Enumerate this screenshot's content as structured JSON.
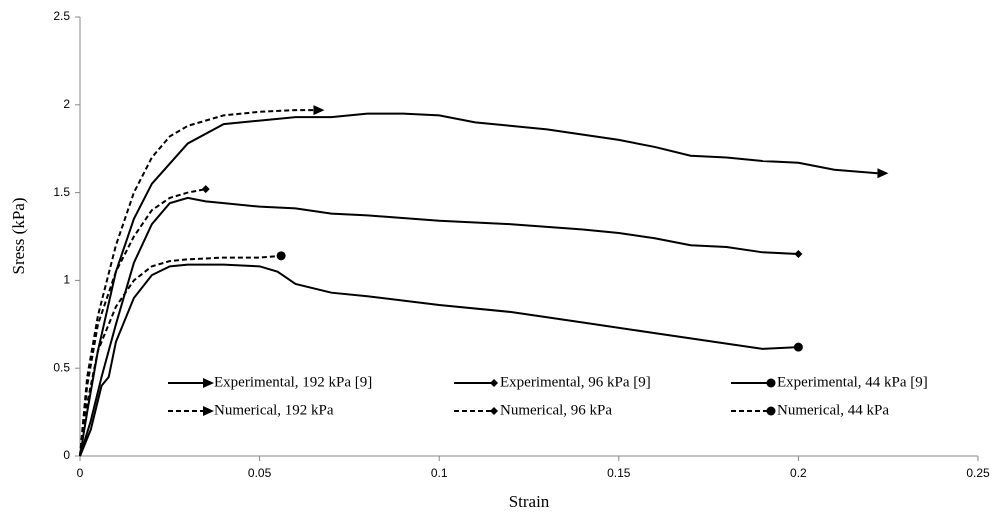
{
  "chart_data": {
    "type": "line",
    "x_label": "Strain",
    "y_label": "Sress (kPa)",
    "xlim": [
      0,
      0.25
    ],
    "xticks": [
      0,
      0.05,
      0.1,
      0.15,
      0.2,
      0.25
    ],
    "ylim": [
      0,
      2.5
    ],
    "yticks": [
      0,
      0.5,
      1,
      1.5,
      2,
      2.5
    ],
    "grid": false,
    "series": [
      {
        "name": "Experimental, 192 kPa [9]",
        "color": "#000000",
        "linestyle": "solid",
        "marker": "arrow",
        "x": [
          0,
          0.002,
          0.005,
          0.01,
          0.015,
          0.02,
          0.03,
          0.04,
          0.05,
          0.06,
          0.07,
          0.08,
          0.09,
          0.1,
          0.11,
          0.12,
          0.13,
          0.14,
          0.15,
          0.16,
          0.17,
          0.18,
          0.19,
          0.2,
          0.21,
          0.222
        ],
        "values": [
          0,
          0.25,
          0.6,
          1.05,
          1.35,
          1.55,
          1.78,
          1.89,
          1.91,
          1.93,
          1.93,
          1.95,
          1.95,
          1.94,
          1.9,
          1.88,
          1.86,
          1.83,
          1.8,
          1.76,
          1.71,
          1.7,
          1.68,
          1.67,
          1.63,
          1.61
        ]
      },
      {
        "name": "Experimental, 96 kPa [9]",
        "color": "#000000",
        "linestyle": "solid",
        "marker": "diamond",
        "x": [
          0,
          0.003,
          0.006,
          0.008,
          0.01,
          0.015,
          0.02,
          0.025,
          0.03,
          0.035,
          0.04,
          0.05,
          0.06,
          0.07,
          0.08,
          0.1,
          0.12,
          0.14,
          0.15,
          0.16,
          0.17,
          0.18,
          0.19,
          0.2
        ],
        "values": [
          0,
          0.2,
          0.45,
          0.6,
          0.75,
          1.1,
          1.32,
          1.44,
          1.47,
          1.45,
          1.44,
          1.42,
          1.41,
          1.38,
          1.37,
          1.34,
          1.32,
          1.29,
          1.27,
          1.24,
          1.2,
          1.19,
          1.16,
          1.15
        ]
      },
      {
        "name": "Experimental, 44 kPa [9]",
        "color": "#000000",
        "linestyle": "solid",
        "marker": "circle",
        "x": [
          0,
          0.003,
          0.006,
          0.008,
          0.01,
          0.015,
          0.02,
          0.025,
          0.03,
          0.04,
          0.05,
          0.055,
          0.06,
          0.07,
          0.08,
          0.1,
          0.12,
          0.14,
          0.16,
          0.18,
          0.19,
          0.2
        ],
        "values": [
          0,
          0.15,
          0.4,
          0.45,
          0.65,
          0.9,
          1.03,
          1.08,
          1.09,
          1.09,
          1.08,
          1.05,
          0.98,
          0.93,
          0.91,
          0.86,
          0.82,
          0.76,
          0.7,
          0.64,
          0.61,
          0.62
        ]
      },
      {
        "name": "Numerical, 192 kPa",
        "color": "#000000",
        "linestyle": "dashed",
        "marker": "arrow",
        "x": [
          0,
          0.002,
          0.005,
          0.01,
          0.015,
          0.02,
          0.025,
          0.03,
          0.04,
          0.05,
          0.06,
          0.065
        ],
        "values": [
          0,
          0.45,
          0.8,
          1.2,
          1.5,
          1.7,
          1.82,
          1.88,
          1.94,
          1.96,
          1.97,
          1.97
        ]
      },
      {
        "name": "Numerical, 96 kPa",
        "color": "#000000",
        "linestyle": "dashed",
        "marker": "diamond",
        "x": [
          0,
          0.002,
          0.005,
          0.01,
          0.015,
          0.02,
          0.025,
          0.03,
          0.035
        ],
        "values": [
          0,
          0.4,
          0.75,
          1.05,
          1.25,
          1.4,
          1.47,
          1.5,
          1.52
        ]
      },
      {
        "name": "Numerical, 44 kPa",
        "color": "#000000",
        "linestyle": "dashed",
        "marker": "circle",
        "x": [
          0,
          0.002,
          0.005,
          0.01,
          0.015,
          0.02,
          0.025,
          0.03,
          0.04,
          0.05,
          0.056
        ],
        "values": [
          0,
          0.3,
          0.6,
          0.85,
          1.0,
          1.08,
          1.11,
          1.12,
          1.13,
          1.13,
          1.14
        ]
      }
    ]
  }
}
